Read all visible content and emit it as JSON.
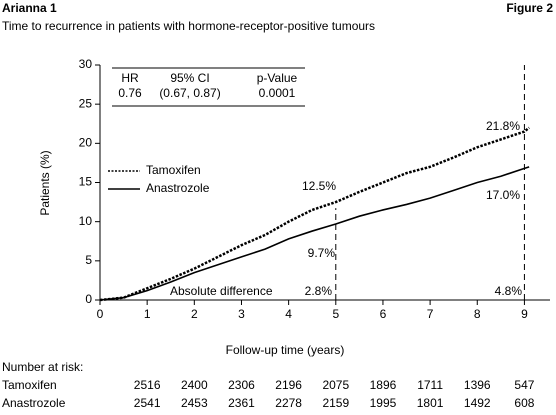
{
  "chart_data": {
    "type": "line",
    "title": "Arianna 1",
    "figure_label": "Figure 2",
    "subtitle": "Time to recurrence in patients with hormone-receptor-positive tumours",
    "y_label": "Patients (%)",
    "x_label": "Follow-up time (years)",
    "xlim": [
      0,
      9.5
    ],
    "xticks": [
      0,
      1,
      2,
      3,
      4,
      5,
      6,
      7,
      8,
      9
    ],
    "ylim": [
      0,
      30
    ],
    "yticks": [
      0,
      5,
      10,
      15,
      20,
      25,
      30
    ],
    "grid": false,
    "legend": "center left",
    "x": [
      0,
      0.5,
      1,
      1.5,
      2,
      2.5,
      3,
      3.5,
      4,
      4.5,
      5,
      5.5,
      6,
      6.5,
      7,
      7.5,
      8,
      8.5,
      9,
      9.1
    ],
    "series": [
      {
        "name": "Tamoxifen",
        "color": "#000000",
        "dash": true,
        "values": [
          0,
          0.3,
          1.5,
          2.7,
          4,
          5.5,
          7,
          8.3,
          10,
          11.5,
          12.5,
          13.8,
          15,
          16.2,
          17,
          18.2,
          19.5,
          20.5,
          21.5,
          22.0
        ]
      },
      {
        "name": "Anastrozole",
        "color": "#000000",
        "dash": false,
        "values": [
          0,
          0.3,
          1.2,
          2.3,
          3.5,
          4.5,
          5.5,
          6.5,
          7.8,
          8.8,
          9.7,
          10.7,
          11.5,
          12.2,
          13,
          14,
          15,
          15.8,
          16.8,
          17.0
        ]
      }
    ],
    "reference_lines": [
      5,
      9
    ],
    "annotations": [
      "12.5%",
      "21.8%",
      "9.7%",
      "17.0%",
      "Absolute difference",
      "2.8%",
      "4.8%"
    ],
    "stats_table": {
      "headers": [
        "HR",
        "95% CI",
        "p-Value"
      ],
      "values": [
        "0.76",
        "(0.67, 0.87)",
        "0.0001"
      ]
    },
    "risk_table": {
      "title": "Number at risk:",
      "times": [
        1,
        2,
        3,
        4,
        5,
        6,
        7,
        8,
        9
      ],
      "rows": [
        {
          "name": "Tamoxifen",
          "values": [
            2516,
            2400,
            2306,
            2196,
            2075,
            1896,
            1711,
            1396,
            547
          ]
        },
        {
          "name": "Anastrozole",
          "values": [
            2541,
            2453,
            2361,
            2278,
            2159,
            1995,
            1801,
            1492,
            608
          ]
        }
      ]
    }
  }
}
